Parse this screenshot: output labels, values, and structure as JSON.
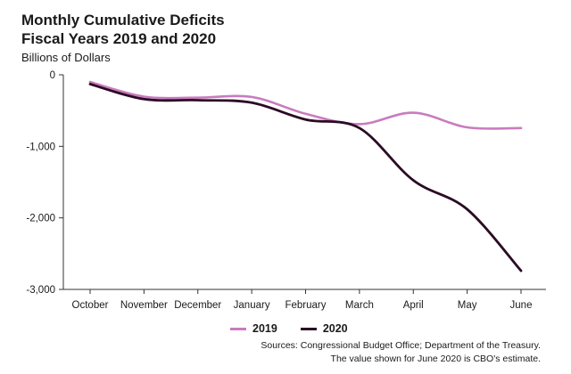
{
  "header": {
    "title_line1": "Monthly Cumulative Deficits",
    "title_line2": "Fiscal Years 2019 and 2020",
    "subtitle": "Billions of Dollars"
  },
  "footer": {
    "source_line1": "Sources: Congressional Budget Office; Department of the Treasury.",
    "source_line2": "The value shown for June 2020 is CBO's estimate."
  },
  "colors": {
    "fy2019": "#c97bbf",
    "fy2020": "#2b0b24",
    "axis": "#333333"
  },
  "chart_data": {
    "type": "line",
    "title": "Monthly Cumulative Deficits Fiscal Years 2019 and 2020",
    "subtitle": "Billions of Dollars",
    "categories": [
      "October",
      "November",
      "December",
      "January",
      "February",
      "March",
      "April",
      "May",
      "June"
    ],
    "series": [
      {
        "name": "2019",
        "color": "#c97bbf",
        "values": [
          -100,
          -305,
          -320,
          -310,
          -545,
          -690,
          -530,
          -735,
          -745
        ]
      },
      {
        "name": "2020",
        "color": "#2b0b24",
        "values": [
          -130,
          -340,
          -355,
          -390,
          -625,
          -745,
          -1475,
          -1880,
          -2740
        ]
      }
    ],
    "y_ticks": [
      0,
      -1000,
      -2000,
      -3000
    ],
    "y_tick_labels": [
      "0",
      "-1,000",
      "-2,000",
      "-3,000"
    ],
    "ylim": [
      -3000,
      0
    ],
    "grid": false,
    "legend_position": "bottom"
  }
}
